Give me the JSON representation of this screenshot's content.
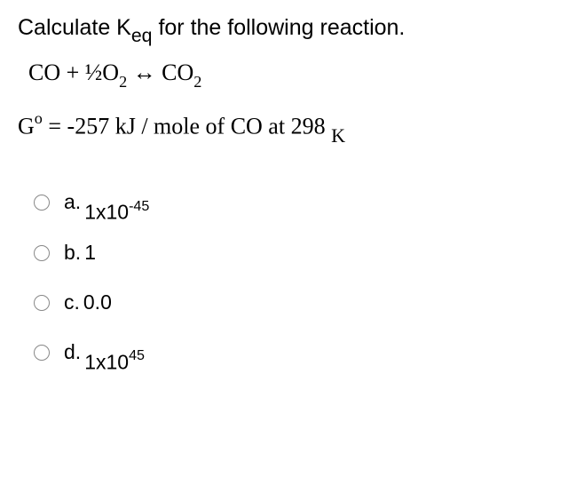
{
  "question": {
    "prompt_prefix": "Calculate ",
    "keq_K": "K",
    "keq_eq": "eq",
    "prompt_suffix": "  for the following reaction."
  },
  "equation": {
    "co": "CO",
    "plus": " + ",
    "half": "½",
    "o": "O",
    "two_a": "2",
    "arrow": "  ↔  ",
    "co_r": "CO",
    "two_b": "2"
  },
  "gibbs": {
    "G": "G",
    "sup_o": "o",
    "eq": " = ",
    "value": "-257 kJ / mole of CO at 298 ",
    "K": "K"
  },
  "options": [
    {
      "letter": "a.",
      "value_prefix": "1x10",
      "value_exp": "-45",
      "inline": false
    },
    {
      "letter": "b.",
      "value_prefix": "1",
      "value_exp": "",
      "inline": true
    },
    {
      "letter": "c.",
      "value_prefix": "0.0",
      "value_exp": "",
      "inline": true
    },
    {
      "letter": "d.",
      "value_prefix": "1x10",
      "value_exp": "45",
      "inline": false
    }
  ],
  "styles": {
    "background_color": "#ffffff",
    "text_color": "#000000",
    "radio_border": "#888888",
    "question_fontsize": 25,
    "equation_fontsize": 26,
    "option_fontsize": 23
  }
}
